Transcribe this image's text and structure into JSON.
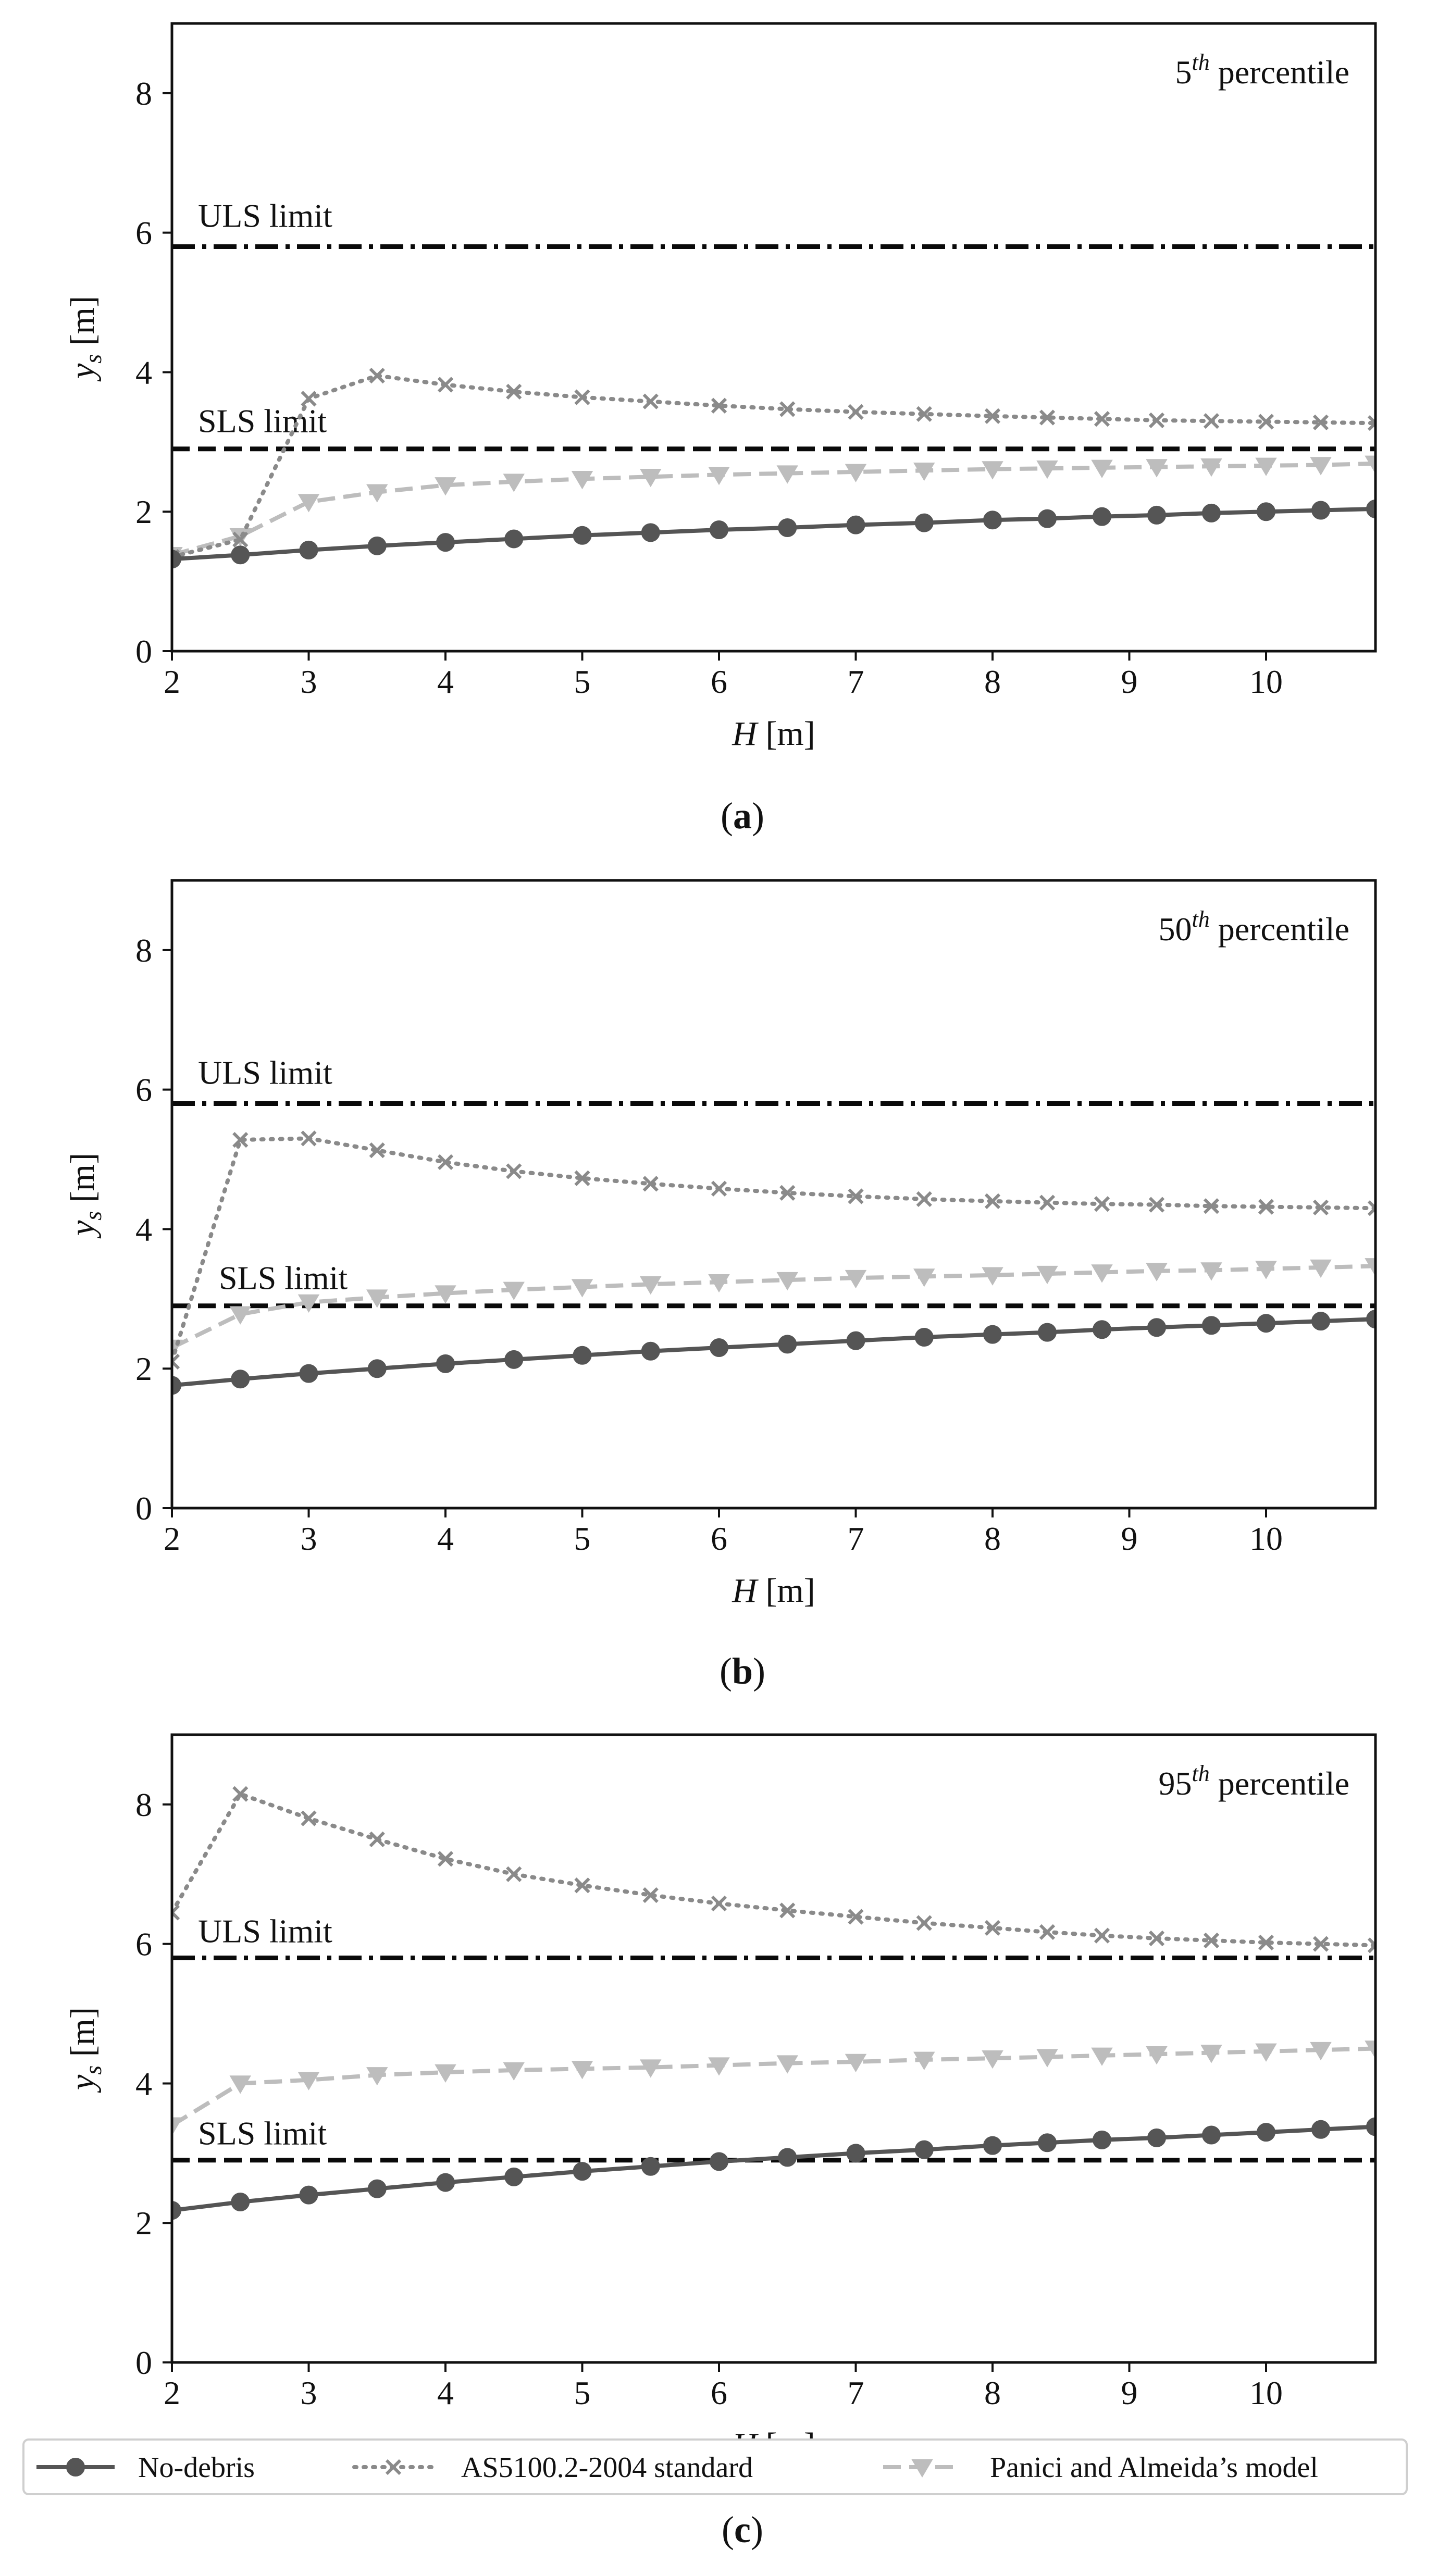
{
  "figure": {
    "series_styles": {
      "no_debris": {
        "color": "#555555",
        "marker": "circle",
        "dash": "solid"
      },
      "as5100": {
        "color": "#8a8a8a",
        "marker": "x",
        "dash": "dotted"
      },
      "panici": {
        "color": "#bdbdbd",
        "marker": "triangle-down",
        "dash": "dashed"
      }
    },
    "legend": {
      "no_debris": "No-debris",
      "as5100": "AS5100.2-2004 standard",
      "panici": "Panici and Almeida’s model"
    }
  },
  "chart_data": [
    {
      "type": "line",
      "caption": "(a)",
      "caption_letter": "a",
      "percentile_num": "5",
      "percentile_sup": "th",
      "percentile_rest": "percentile",
      "xlabel_var": "H",
      "xlabel_unit": "[m]",
      "ylabel_var": "y",
      "ylabel_sub": "s",
      "ylabel_unit": "[m]",
      "xlim": [
        2,
        10.8
      ],
      "ylim": [
        0,
        9
      ],
      "xticks": [
        2,
        3,
        4,
        5,
        6,
        7,
        8,
        9,
        10
      ],
      "yticks": [
        0,
        2,
        4,
        6,
        8
      ],
      "limits": [
        {
          "name": "ULS limit",
          "y": 5.8,
          "style": "dashdot"
        },
        {
          "name": "SLS limit",
          "y": 2.9,
          "style": "dashed"
        }
      ],
      "x": [
        2,
        2.5,
        3,
        3.5,
        4,
        4.5,
        5,
        5.5,
        6,
        6.5,
        7,
        7.5,
        8,
        8.4,
        8.8,
        9.2,
        9.6,
        10,
        10.4,
        10.8
      ],
      "series": [
        {
          "name": "No-debris",
          "key": "no_debris",
          "values": [
            1.32,
            1.38,
            1.45,
            1.51,
            1.56,
            1.61,
            1.66,
            1.7,
            1.74,
            1.77,
            1.81,
            1.84,
            1.88,
            1.9,
            1.93,
            1.95,
            1.98,
            2.0,
            2.02,
            2.04
          ]
        },
        {
          "name": "AS5100.2-2004 standard",
          "key": "as5100",
          "values": [
            1.35,
            1.6,
            3.62,
            3.95,
            3.82,
            3.72,
            3.64,
            3.58,
            3.52,
            3.47,
            3.43,
            3.4,
            3.37,
            3.35,
            3.33,
            3.31,
            3.3,
            3.29,
            3.28,
            3.27
          ]
        },
        {
          "name": "Panici and Almeida’s model",
          "key": "panici",
          "values": [
            1.38,
            1.65,
            2.14,
            2.28,
            2.38,
            2.43,
            2.47,
            2.5,
            2.53,
            2.55,
            2.57,
            2.59,
            2.61,
            2.62,
            2.63,
            2.64,
            2.65,
            2.66,
            2.67,
            2.69
          ]
        }
      ]
    },
    {
      "type": "line",
      "caption": "(b)",
      "caption_letter": "b",
      "percentile_num": "50",
      "percentile_sup": "th",
      "percentile_rest": "percentile",
      "xlabel_var": "H",
      "xlabel_unit": "[m]",
      "ylabel_var": "y",
      "ylabel_sub": "s",
      "ylabel_unit": "[m]",
      "xlim": [
        2,
        10.8
      ],
      "ylim": [
        0,
        9
      ],
      "xticks": [
        2,
        3,
        4,
        5,
        6,
        7,
        8,
        9,
        10
      ],
      "yticks": [
        0,
        2,
        4,
        6,
        8
      ],
      "limits": [
        {
          "name": "ULS limit",
          "y": 5.8,
          "style": "dashdot"
        },
        {
          "name": "SLS limit",
          "y": 2.9,
          "style": "dashed"
        }
      ],
      "x": [
        2,
        2.5,
        3,
        3.5,
        4,
        4.5,
        5,
        5.5,
        6,
        6.5,
        7,
        7.5,
        8,
        8.4,
        8.8,
        9.2,
        9.6,
        10,
        10.4,
        10.8
      ],
      "series": [
        {
          "name": "No-debris",
          "key": "no_debris",
          "values": [
            1.76,
            1.85,
            1.93,
            2.0,
            2.07,
            2.13,
            2.19,
            2.25,
            2.3,
            2.35,
            2.4,
            2.45,
            2.49,
            2.52,
            2.56,
            2.59,
            2.62,
            2.65,
            2.68,
            2.71
          ]
        },
        {
          "name": "AS5100.2-2004 standard",
          "key": "as5100",
          "values": [
            2.1,
            5.28,
            5.3,
            5.13,
            4.96,
            4.83,
            4.73,
            4.65,
            4.58,
            4.52,
            4.47,
            4.43,
            4.4,
            4.38,
            4.36,
            4.35,
            4.33,
            4.32,
            4.31,
            4.3
          ]
        },
        {
          "name": "Panici and Almeida’s model",
          "key": "panici",
          "values": [
            2.3,
            2.78,
            2.95,
            3.02,
            3.08,
            3.13,
            3.17,
            3.21,
            3.24,
            3.27,
            3.3,
            3.32,
            3.34,
            3.36,
            3.38,
            3.4,
            3.41,
            3.43,
            3.45,
            3.47
          ]
        }
      ]
    },
    {
      "type": "line",
      "caption": "(c)",
      "caption_letter": "c",
      "percentile_num": "95",
      "percentile_sup": "th",
      "percentile_rest": "percentile",
      "xlabel_var": "H",
      "xlabel_unit": "[m]",
      "ylabel_var": "y",
      "ylabel_sub": "s",
      "ylabel_unit": "[m]",
      "xlim": [
        2,
        10.8
      ],
      "ylim": [
        0,
        9
      ],
      "xticks": [
        2,
        3,
        4,
        5,
        6,
        7,
        8,
        9,
        10
      ],
      "yticks": [
        0,
        2,
        4,
        6,
        8
      ],
      "limits": [
        {
          "name": "ULS limit",
          "y": 5.8,
          "style": "dashdot"
        },
        {
          "name": "SLS limit",
          "y": 2.9,
          "style": "dashed"
        }
      ],
      "x": [
        2,
        2.5,
        3,
        3.5,
        4,
        4.5,
        5,
        5.5,
        6,
        6.5,
        7,
        7.5,
        8,
        8.4,
        8.8,
        9.2,
        9.6,
        10,
        10.4,
        10.8
      ],
      "series": [
        {
          "name": "No-debris",
          "key": "no_debris",
          "values": [
            2.18,
            2.3,
            2.4,
            2.49,
            2.58,
            2.66,
            2.74,
            2.81,
            2.88,
            2.94,
            3.0,
            3.05,
            3.11,
            3.15,
            3.19,
            3.22,
            3.26,
            3.3,
            3.34,
            3.38
          ]
        },
        {
          "name": "AS5100.2-2004 standard",
          "key": "as5100",
          "values": [
            6.45,
            8.15,
            7.8,
            7.5,
            7.22,
            7.0,
            6.84,
            6.7,
            6.58,
            6.48,
            6.39,
            6.3,
            6.23,
            6.17,
            6.12,
            6.08,
            6.05,
            6.02,
            6.0,
            5.98
          ]
        },
        {
          "name": "Panici and Almeida’s model",
          "key": "panici",
          "values": [
            3.4,
            4.0,
            4.05,
            4.12,
            4.16,
            4.19,
            4.21,
            4.23,
            4.26,
            4.29,
            4.31,
            4.34,
            4.36,
            4.38,
            4.4,
            4.42,
            4.44,
            4.46,
            4.48,
            4.5
          ]
        }
      ]
    }
  ]
}
